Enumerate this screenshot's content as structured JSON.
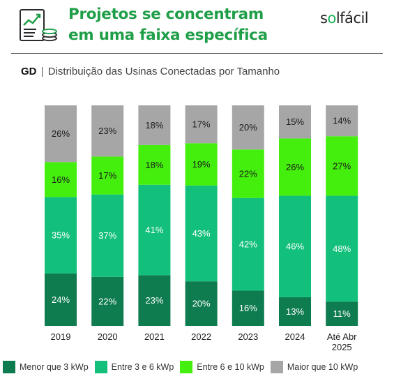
{
  "header": {
    "title_line1": "Projetos se concentram",
    "title_line2": "em uma faixa específica",
    "brand": {
      "before": "s",
      "highlight": "o",
      "after": "lfácil"
    },
    "icon": "report-chart-coins-icon"
  },
  "subtitle": {
    "prefix": "GD",
    "separator": "|",
    "text": "Distribuição das Usinas Conectadas por Tamanho"
  },
  "colors": {
    "brand_green": "#1f9e48",
    "series": [
      "#0e7c4f",
      "#12c07b",
      "#44ee0d",
      "#a6a6a6"
    ]
  },
  "chart_data": {
    "type": "bar",
    "stacked": true,
    "categories": [
      "2019",
      "2020",
      "2021",
      "2022",
      "2023",
      "2024",
      "Até Abr 2025"
    ],
    "series": [
      {
        "name": "Menor que 3 kWp",
        "values": [
          24,
          22,
          23,
          20,
          16,
          13,
          11
        ]
      },
      {
        "name": "Entre 3 e 6 kWp",
        "values": [
          35,
          37,
          41,
          43,
          42,
          46,
          48
        ]
      },
      {
        "name": "Entre 6 e 10 kWp",
        "values": [
          16,
          17,
          18,
          19,
          22,
          26,
          27
        ]
      },
      {
        "name": "Maior que 10 kWp",
        "values": [
          26,
          23,
          18,
          17,
          20,
          15,
          14
        ]
      }
    ],
    "value_suffix": "%",
    "legend_position": "bottom",
    "ylim": [
      0,
      100
    ],
    "grid": false
  }
}
